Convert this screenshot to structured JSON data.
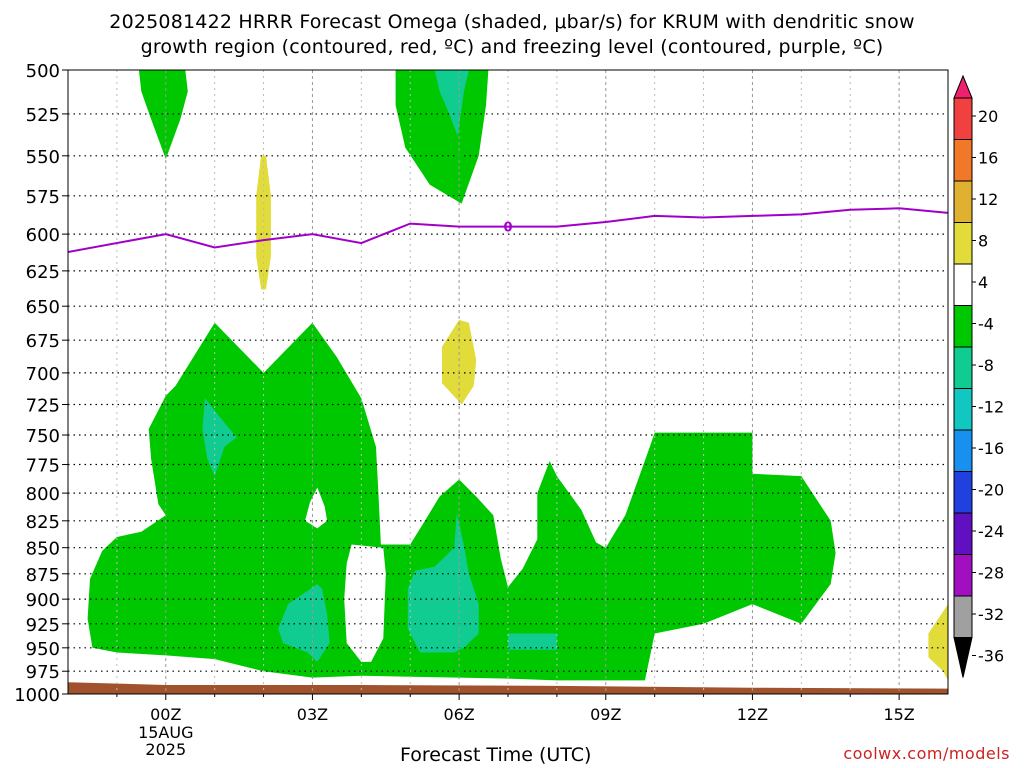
{
  "title": {
    "line1": "2025081422 HRRR Forecast Omega (shaded, μbar/s) for KRUM with dendritic snow",
    "line2": "growth region (contoured, red, ºC) and freezing level (contoured, purple, ºC)"
  },
  "watermark": "coolwx.com/models",
  "chart_data": {
    "type": "time-height cross section",
    "xlabel": "Forecast Time (UTC)",
    "x_ticks": [
      {
        "hour": 0,
        "label": "00Z",
        "sub": [
          "15AUG",
          "2025"
        ]
      },
      {
        "hour": 3,
        "label": "03Z"
      },
      {
        "hour": 6,
        "label": "06Z"
      },
      {
        "hour": 9,
        "label": "09Z"
      },
      {
        "hour": 12,
        "label": "12Z"
      },
      {
        "hour": 15,
        "label": "15Z"
      }
    ],
    "x_range_hours": [
      -2,
      16
    ],
    "y_ticks": [
      500,
      525,
      550,
      575,
      600,
      625,
      650,
      675,
      700,
      725,
      750,
      775,
      800,
      825,
      850,
      875,
      900,
      925,
      950,
      975,
      1000
    ],
    "y_range_hpa": [
      500,
      1000
    ],
    "y_scale": "log-pressure",
    "grid": true,
    "colorbar": {
      "labels": [
        "20",
        "16",
        "12",
        "8",
        "4",
        "-4",
        "-8",
        "-12",
        "-16",
        "-20",
        "-24",
        "-28",
        "-32",
        "-36"
      ],
      "colors": [
        "#f02070",
        "#f04040",
        "#f07828",
        "#e0b030",
        "#e2dc3a",
        "#ffffff",
        "#00c800",
        "#10cc90",
        "#10c8c0",
        "#1890f0",
        "#2040e0",
        "#6010c0",
        "#a010c0",
        "#a0a0a0",
        "#000000"
      ]
    },
    "freezing_level": {
      "label": "0",
      "color": "#a000c8",
      "points": [
        [
          -2,
          612
        ],
        [
          0,
          600
        ],
        [
          1,
          609
        ],
        [
          2,
          604
        ],
        [
          3,
          600
        ],
        [
          4,
          606
        ],
        [
          5,
          593
        ],
        [
          6,
          595
        ],
        [
          7,
          595
        ],
        [
          8,
          595
        ],
        [
          9,
          592
        ],
        [
          10,
          588
        ],
        [
          11,
          589
        ],
        [
          12,
          588
        ],
        [
          13,
          587
        ],
        [
          14,
          584
        ],
        [
          15,
          583
        ],
        [
          16,
          586
        ]
      ]
    },
    "omega_regions": [
      {
        "name": "green-upper-left",
        "level": "-4 to -8",
        "color": "#00c800",
        "points": [
          [
            -0.55,
            500
          ],
          [
            0.4,
            500
          ],
          [
            0.45,
            512
          ],
          [
            0.3,
            528
          ],
          [
            0,
            552
          ],
          [
            -0.3,
            528
          ],
          [
            -0.5,
            512
          ]
        ]
      },
      {
        "name": "green-upper-mid",
        "level": "-4 to -8",
        "color": "#00c800",
        "points": [
          [
            4.7,
            500
          ],
          [
            6.6,
            500
          ],
          [
            6.55,
            520
          ],
          [
            6.4,
            550
          ],
          [
            6.05,
            580
          ],
          [
            5.4,
            568
          ],
          [
            4.9,
            545
          ],
          [
            4.7,
            520
          ]
        ]
      },
      {
        "name": "teal-upper-mid",
        "level": "-8 to -12",
        "color": "#10cc90",
        "points": [
          [
            5.5,
            500
          ],
          [
            6.2,
            500
          ],
          [
            6.1,
            512
          ],
          [
            5.97,
            538
          ],
          [
            5.8,
            525
          ],
          [
            5.6,
            512
          ]
        ]
      },
      {
        "name": "yellow-strip-02z",
        "level": "4 to 8",
        "color": "#e2dc3a",
        "points": [
          [
            1.95,
            550
          ],
          [
            2.05,
            550
          ],
          [
            2.15,
            575
          ],
          [
            2.15,
            615
          ],
          [
            2.05,
            638
          ],
          [
            1.95,
            638
          ],
          [
            1.85,
            615
          ],
          [
            1.85,
            575
          ]
        ]
      },
      {
        "name": "yellow-blob-06z",
        "level": "4 to 8",
        "color": "#e2dc3a",
        "points": [
          [
            6.0,
            660
          ],
          [
            6.2,
            662
          ],
          [
            6.35,
            690
          ],
          [
            6.3,
            710
          ],
          [
            6.05,
            725
          ],
          [
            5.65,
            708
          ],
          [
            5.65,
            680
          ]
        ]
      },
      {
        "name": "green-main",
        "level": "-4 to -8",
        "color": "#00c800",
        "points": [
          [
            1.0,
            662
          ],
          [
            2.0,
            700
          ],
          [
            3.0,
            662
          ],
          [
            3.5,
            688
          ],
          [
            4.0,
            720
          ],
          [
            4.3,
            760
          ],
          [
            4.35,
            800
          ],
          [
            4.4,
            847
          ],
          [
            5.0,
            847
          ],
          [
            5.3,
            825
          ],
          [
            5.6,
            803
          ],
          [
            6.0,
            788
          ],
          [
            6.35,
            803
          ],
          [
            6.7,
            820
          ],
          [
            6.85,
            860
          ],
          [
            7.0,
            888
          ],
          [
            7.3,
            870
          ],
          [
            7.6,
            842
          ],
          [
            7.6,
            800
          ],
          [
            7.85,
            772
          ],
          [
            8.0,
            785
          ],
          [
            8.5,
            815
          ],
          [
            8.8,
            845
          ],
          [
            9.0,
            850
          ],
          [
            9.4,
            820
          ],
          [
            9.9,
            760
          ],
          [
            10.0,
            748
          ],
          [
            12.0,
            748
          ],
          [
            12.0,
            783
          ],
          [
            13.0,
            785
          ],
          [
            13.6,
            825
          ],
          [
            13.7,
            855
          ],
          [
            13.6,
            885
          ],
          [
            13.0,
            925
          ],
          [
            12.0,
            905
          ],
          [
            11.0,
            925
          ],
          [
            10.0,
            935
          ],
          [
            9.9,
            960
          ],
          [
            9.8,
            985
          ],
          [
            9.0,
            985
          ],
          [
            8.0,
            985
          ],
          [
            7.0,
            983
          ],
          [
            6.0,
            982
          ],
          [
            5.0,
            981
          ],
          [
            4.0,
            980
          ],
          [
            3.0,
            982
          ],
          [
            2.0,
            975
          ],
          [
            1.0,
            962
          ],
          [
            0.0,
            958
          ],
          [
            -1.0,
            955
          ],
          [
            -1.5,
            950
          ],
          [
            -1.6,
            920
          ],
          [
            -1.55,
            880
          ],
          [
            -1.3,
            853
          ],
          [
            -1.0,
            840
          ],
          [
            -0.5,
            835
          ],
          [
            0,
            820
          ],
          [
            -0.15,
            810
          ],
          [
            -0.3,
            770
          ],
          [
            -0.35,
            745
          ],
          [
            0,
            718
          ],
          [
            0.2,
            710
          ]
        ]
      },
      {
        "name": "white-hole-03z",
        "level": "-4 to 4",
        "color": "#ffffff",
        "points": [
          [
            3.1,
            795
          ],
          [
            3.25,
            812
          ],
          [
            3.3,
            825
          ],
          [
            3.1,
            832
          ],
          [
            2.85,
            825
          ],
          [
            2.95,
            808
          ]
        ]
      },
      {
        "name": "white-hole-04z",
        "level": "-4 to 4",
        "color": "#ffffff",
        "points": [
          [
            3.8,
            847
          ],
          [
            4.45,
            850
          ],
          [
            4.5,
            875
          ],
          [
            4.45,
            940
          ],
          [
            4.2,
            965
          ],
          [
            4.0,
            965
          ],
          [
            3.7,
            945
          ],
          [
            3.65,
            900
          ],
          [
            3.7,
            865
          ]
        ]
      },
      {
        "name": "teal-0130z",
        "level": "-8 to -12",
        "color": "#10cc90",
        "points": [
          [
            0.8,
            720
          ],
          [
            1.1,
            735
          ],
          [
            1.45,
            752
          ],
          [
            1.2,
            760
          ],
          [
            1.0,
            785
          ],
          [
            0.85,
            770
          ],
          [
            0.75,
            745
          ]
        ]
      },
      {
        "name": "teal-03z",
        "level": "-8 to -12",
        "color": "#10cc90",
        "points": [
          [
            3.1,
            885
          ],
          [
            3.2,
            890
          ],
          [
            3.3,
            915
          ],
          [
            3.35,
            945
          ],
          [
            3.1,
            965
          ],
          [
            2.9,
            955
          ],
          [
            2.4,
            945
          ],
          [
            2.3,
            930
          ],
          [
            2.5,
            905
          ],
          [
            2.8,
            895
          ]
        ]
      },
      {
        "name": "teal-06z",
        "level": "-8 to -12",
        "color": "#10cc90",
        "points": [
          [
            5.95,
            818
          ],
          [
            6.1,
            848
          ],
          [
            6.2,
            875
          ],
          [
            6.4,
            905
          ],
          [
            6.4,
            935
          ],
          [
            6.1,
            950
          ],
          [
            5.9,
            955
          ],
          [
            5.2,
            955
          ],
          [
            4.95,
            930
          ],
          [
            4.95,
            890
          ],
          [
            5.1,
            872
          ],
          [
            5.5,
            868
          ],
          [
            5.9,
            850
          ]
        ]
      },
      {
        "name": "teal-0830z",
        "level": "-8 to -12",
        "color": "#10cc90",
        "points": [
          [
            7.0,
            935
          ],
          [
            8.0,
            935
          ],
          [
            8.0,
            952
          ],
          [
            7.0,
            952
          ]
        ]
      },
      {
        "name": "yellow-lower-right",
        "level": "4 to 8",
        "color": "#e2dc3a",
        "points": [
          [
            15.8,
            920
          ],
          [
            16.0,
            905
          ],
          [
            16.0,
            985
          ],
          [
            15.9,
            975
          ],
          [
            15.6,
            960
          ],
          [
            15.6,
            935
          ]
        ]
      }
    ],
    "terrain": {
      "name": "surface",
      "color": "#a0522d",
      "points": [
        [
          -2,
          987
        ],
        [
          0,
          990
        ],
        [
          4,
          990
        ],
        [
          8,
          991
        ],
        [
          12,
          993
        ],
        [
          16,
          994
        ]
      ]
    }
  }
}
